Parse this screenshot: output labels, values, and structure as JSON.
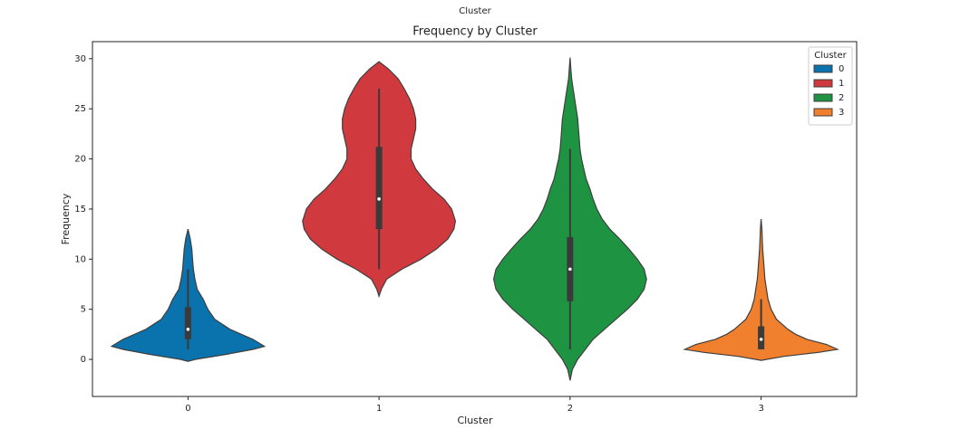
{
  "chart_data": {
    "type": "violin",
    "suptitle": "Cluster",
    "title": "Frequency by Cluster",
    "x_label": "Cluster",
    "y_label": "Frequency",
    "categories": [
      "0",
      "1",
      "2",
      "3"
    ],
    "ylim": [
      -3.7,
      31.7
    ],
    "yticks": [
      0,
      5,
      10,
      15,
      20,
      25,
      30
    ],
    "grid": false,
    "legend": {
      "title": "Cluster",
      "position": "upper-right"
    },
    "series": [
      {
        "name": "0",
        "color": "#0a72ad",
        "box": {
          "whisker_low": 1,
          "q1": 2,
          "median": 3,
          "q3": 5.2,
          "whisker_high": 9
        },
        "density": {
          "y": [
            -0.2,
            0,
            0.5,
            1,
            1.3,
            2,
            3,
            4,
            5,
            6,
            7,
            8,
            9,
            10,
            11,
            12,
            13
          ],
          "width": [
            0,
            0.1,
            0.5,
            0.85,
            1,
            0.85,
            0.55,
            0.35,
            0.26,
            0.2,
            0.12,
            0.09,
            0.07,
            0.06,
            0.05,
            0.03,
            0
          ]
        }
      },
      {
        "name": "1",
        "color": "#d0393d",
        "box": {
          "whisker_low": 9,
          "q1": 13,
          "median": 16,
          "q3": 21.2,
          "whisker_high": 27
        },
        "density": {
          "y": [
            6.3,
            7,
            8,
            9,
            10,
            11,
            12,
            13,
            13.8,
            15,
            16,
            17,
            18,
            19,
            20,
            21,
            22,
            23,
            24,
            25,
            26,
            27,
            28,
            29,
            29.7
          ],
          "width": [
            0,
            0.03,
            0.1,
            0.3,
            0.55,
            0.75,
            0.9,
            0.98,
            1,
            0.95,
            0.85,
            0.7,
            0.58,
            0.48,
            0.42,
            0.42,
            0.45,
            0.48,
            0.48,
            0.45,
            0.4,
            0.33,
            0.25,
            0.12,
            0
          ]
        }
      },
      {
        "name": "2",
        "color": "#1e9443",
        "box": {
          "whisker_low": 1,
          "q1": 5.8,
          "median": 9,
          "q3": 12.2,
          "whisker_high": 21
        },
        "density": {
          "y": [
            -2.1,
            -1,
            0,
            1,
            2,
            3,
            4,
            5,
            6,
            7,
            8,
            9,
            10,
            11,
            12,
            13,
            14,
            15,
            16,
            17,
            18,
            19,
            20,
            21,
            22,
            23,
            24,
            25,
            26,
            27,
            28,
            29,
            30.1
          ],
          "width": [
            0,
            0.03,
            0.1,
            0.2,
            0.3,
            0.45,
            0.6,
            0.75,
            0.88,
            0.97,
            1,
            0.97,
            0.88,
            0.77,
            0.65,
            0.52,
            0.42,
            0.35,
            0.3,
            0.26,
            0.21,
            0.18,
            0.15,
            0.13,
            0.12,
            0.11,
            0.1,
            0.08,
            0.06,
            0.04,
            0.02,
            0.01,
            0
          ]
        }
      },
      {
        "name": "3",
        "color": "#f07f2e",
        "box": {
          "whisker_low": 1,
          "q1": 1,
          "median": 2,
          "q3": 3.3,
          "whisker_high": 6
        },
        "density": {
          "y": [
            -0.1,
            0.3,
            0.7,
            1,
            1.5,
            2,
            2.5,
            3,
            4,
            5,
            6,
            7,
            8,
            9,
            10,
            11,
            12,
            13,
            14
          ],
          "width": [
            0,
            0.3,
            0.75,
            1,
            0.85,
            0.6,
            0.45,
            0.35,
            0.2,
            0.13,
            0.09,
            0.07,
            0.05,
            0.04,
            0.03,
            0.02,
            0.015,
            0.01,
            0
          ]
        }
      }
    ]
  }
}
